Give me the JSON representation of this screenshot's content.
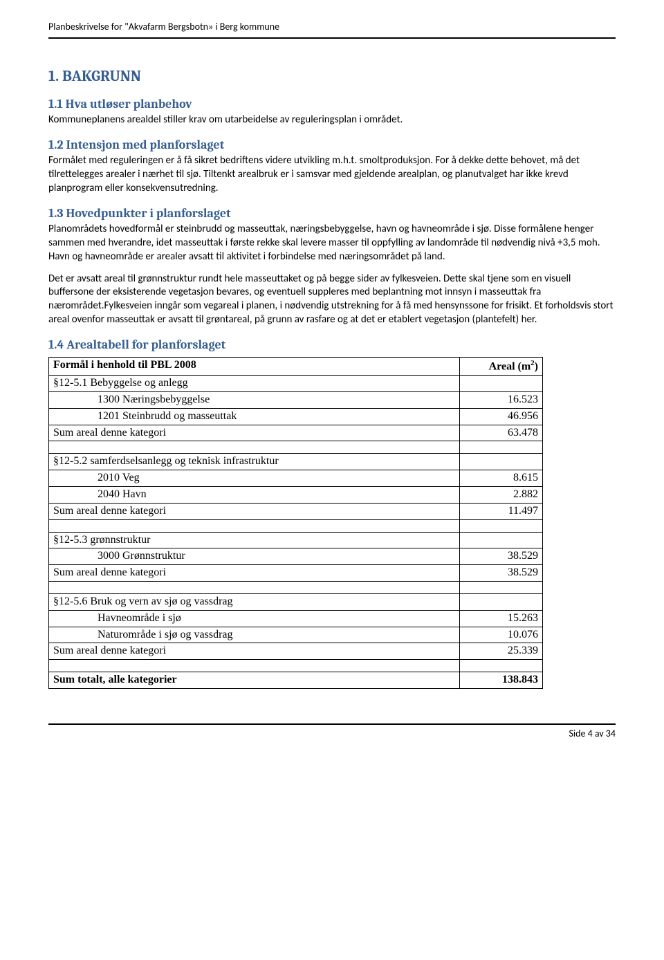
{
  "header": {
    "text": "Planbeskrivelse for \"Akvafarm Bergsbotn» i Berg kommune"
  },
  "sections": {
    "s1": {
      "title": "1. BAKGRUNN",
      "s11": {
        "title": "1.1 Hva utløser planbehov",
        "p1": "Kommuneplanens arealdel stiller krav om utarbeidelse av reguleringsplan i området."
      },
      "s12": {
        "title": "1.2 Intensjon med planforslaget",
        "p1": "Formålet med reguleringen er å få sikret bedriftens videre utvikling m.h.t. smoltproduksjon. For å dekke dette behovet, må det tilrettelegges arealer i nærhet til sjø. Tiltenkt arealbruk er i samsvar med gjeldende arealplan, og planutvalget har ikke krevd planprogram eller konsekvensutredning."
      },
      "s13": {
        "title": "1.3 Hovedpunkter i planforslaget",
        "p1": "Planområdets hovedformål er steinbrudd og masseuttak, næringsbebyggelse, havn og havneområde i sjø. Disse formålene henger sammen med hverandre, idet masseuttak i første rekke skal levere masser til oppfylling av landområde til nødvendig nivå +3,5 moh. Havn og havneområde er arealer avsatt til aktivitet i forbindelse med næringsområdet på land.",
        "p2": "Det er avsatt areal til grønnstruktur rundt hele masseuttaket og på begge sider av fylkesveien. Dette skal tjene som en visuell buffersone der eksisterende vegetasjon bevares, og eventuell suppleres med beplantning mot innsyn i masseuttak fra nærområdet.Fylkesveien inngår som vegareal i planen, i nødvendig utstrekning for å få med hensynssone for frisikt. Et forholdsvis stort areal ovenfor masseuttak er avsatt til grøntareal, på grunn av rasfare og at det er etablert vegetasjon (plantefelt) her."
      },
      "s14": {
        "title": "1.4 Arealtabell for planforslaget"
      }
    }
  },
  "table": {
    "header_col1": "Formål i henhold til PBL 2008",
    "header_col2_prefix": "Areal (m",
    "header_col2_sup": "2",
    "header_col2_suffix": ")",
    "rows": [
      {
        "type": "section",
        "c1": "§12-5.1 Bebyggelse og anlegg",
        "c2": ""
      },
      {
        "type": "indent",
        "c1": "1300 Næringsbebyggelse",
        "c2": "16.523"
      },
      {
        "type": "indent",
        "c1": "1201 Steinbrudd og masseuttak",
        "c2": "46.956"
      },
      {
        "type": "sum",
        "c1": "Sum areal denne kategori",
        "c2": "63.478"
      },
      {
        "type": "spacer",
        "c1": "",
        "c2": ""
      },
      {
        "type": "section",
        "c1": "§12-5.2 samferdselsanlegg og teknisk infrastruktur",
        "c2": ""
      },
      {
        "type": "indent",
        "c1": "2010 Veg",
        "c2": "8.615"
      },
      {
        "type": "indent",
        "c1": "2040 Havn",
        "c2": "2.882"
      },
      {
        "type": "sum",
        "c1": "Sum areal denne kategori",
        "c2": "11.497"
      },
      {
        "type": "spacer",
        "c1": "",
        "c2": ""
      },
      {
        "type": "section",
        "c1": "§12-5.3 grønnstruktur",
        "c2": ""
      },
      {
        "type": "indent",
        "c1": "3000 Grønnstruktur",
        "c2": "38.529"
      },
      {
        "type": "sum",
        "c1": "Sum areal denne kategori",
        "c2": "38.529"
      },
      {
        "type": "spacer",
        "c1": "",
        "c2": ""
      },
      {
        "type": "section",
        "c1": "§12-5.6 Bruk og vern av sjø og vassdrag",
        "c2": ""
      },
      {
        "type": "indent",
        "c1": "Havneområde i sjø",
        "c2": "15.263"
      },
      {
        "type": "indent",
        "c1": "Naturområde i sjø og vassdrag",
        "c2": "10.076"
      },
      {
        "type": "sum",
        "c1": "Sum areal denne kategori",
        "c2": "25.339"
      },
      {
        "type": "spacer",
        "c1": "",
        "c2": ""
      },
      {
        "type": "total",
        "c1": "Sum totalt, alle kategorier",
        "c2": "138.843"
      }
    ]
  },
  "footer": {
    "text": "Side 4 av 34"
  },
  "colors": {
    "heading": "#365f91",
    "text": "#000000",
    "border": "#000000",
    "background": "#ffffff"
  }
}
